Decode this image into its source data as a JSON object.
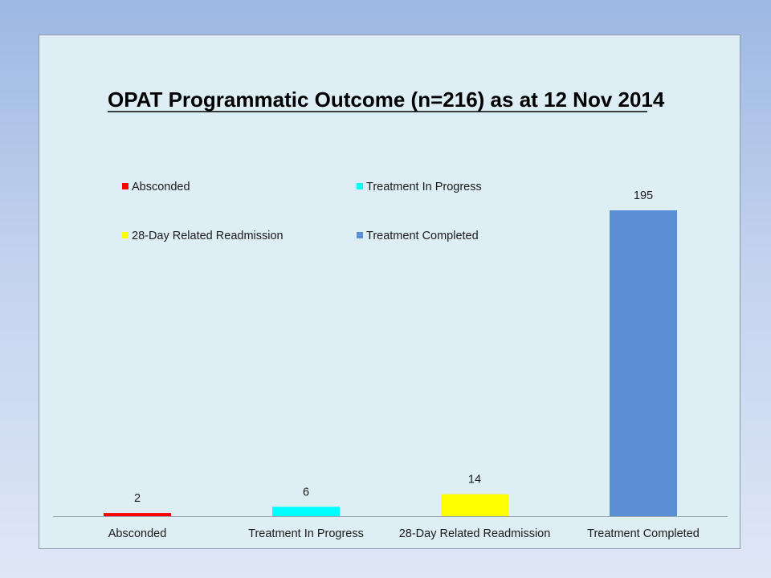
{
  "chart_data": {
    "type": "bar",
    "title": "OPAT Programmatic Outcome  (n=216) as at 12 Nov 2014",
    "categories": [
      "Absconded",
      "Treatment In Progress",
      "28-Day Related Readmission",
      "Treatment Completed"
    ],
    "values": [
      2,
      6,
      14,
      195
    ],
    "colors": [
      "#ff0000",
      "#00ffff",
      "#ffff00",
      "#5a8fd6"
    ],
    "data_labels": [
      "2",
      "6",
      "14",
      "195"
    ],
    "legend": [
      {
        "label": "Absconded",
        "color": "#ff0000"
      },
      {
        "label": "Treatment In Progress",
        "color": "#00ffff"
      },
      {
        "label": "28-Day Related Readmission",
        "color": "#ffff00"
      },
      {
        "label": "Treatment Completed",
        "color": "#5a8fd6"
      }
    ],
    "legend_position": "top-left",
    "xlabel": "",
    "ylabel": "",
    "ylim": [
      0,
      195
    ],
    "grid": false
  }
}
